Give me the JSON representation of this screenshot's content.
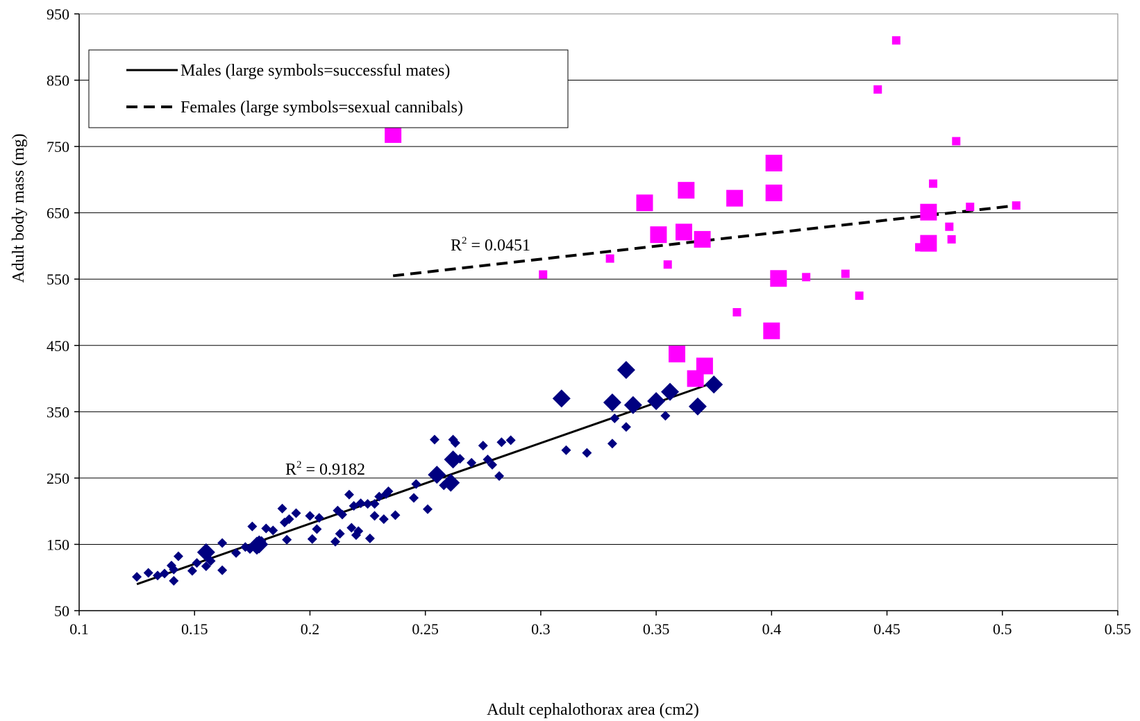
{
  "chart_data": {
    "type": "scatter",
    "xlabel": "Adult cephalothorax area (cm2)",
    "ylabel": "Adult body mass (mg)",
    "xlim": [
      0.1,
      0.55
    ],
    "ylim": [
      50,
      950
    ],
    "x_ticks": [
      "0.1",
      "0.15",
      "0.2",
      "0.25",
      "0.3",
      "0.35",
      "0.4",
      "0.45",
      "0.5",
      "0.55"
    ],
    "y_ticks": [
      "50",
      "150",
      "250",
      "350",
      "450",
      "550",
      "650",
      "750",
      "850",
      "950"
    ],
    "grid": "horizontal",
    "legend_position": "top-left",
    "legend": [
      {
        "label": "Males (large symbols=successful mates)",
        "line_style": "solid"
      },
      {
        "label": "Females (large symbols=sexual cannibals)",
        "line_style": "dashed"
      }
    ],
    "series": [
      {
        "name": "Males (large symbols=successful mates)",
        "color": "#000080",
        "marker": "diamond",
        "small_points": [
          [
            0.125,
            101
          ],
          [
            0.13,
            107
          ],
          [
            0.134,
            103
          ],
          [
            0.137,
            106
          ],
          [
            0.14,
            118
          ],
          [
            0.141,
            112
          ],
          [
            0.141,
            95
          ],
          [
            0.143,
            132
          ],
          [
            0.149,
            110
          ],
          [
            0.151,
            122
          ],
          [
            0.155,
            117
          ],
          [
            0.157,
            125
          ],
          [
            0.162,
            111
          ],
          [
            0.162,
            152
          ],
          [
            0.168,
            137
          ],
          [
            0.172,
            146
          ],
          [
            0.174,
            143
          ],
          [
            0.175,
            177
          ],
          [
            0.179,
            155
          ],
          [
            0.181,
            174
          ],
          [
            0.184,
            171
          ],
          [
            0.188,
            204
          ],
          [
            0.189,
            183
          ],
          [
            0.19,
            157
          ],
          [
            0.191,
            188
          ],
          [
            0.194,
            197
          ],
          [
            0.2,
            193
          ],
          [
            0.201,
            158
          ],
          [
            0.203,
            173
          ],
          [
            0.204,
            190
          ],
          [
            0.211,
            154
          ],
          [
            0.212,
            201
          ],
          [
            0.213,
            166
          ],
          [
            0.214,
            195
          ],
          [
            0.217,
            225
          ],
          [
            0.218,
            175
          ],
          [
            0.219,
            208
          ],
          [
            0.22,
            164
          ],
          [
            0.221,
            170
          ],
          [
            0.222,
            212
          ],
          [
            0.225,
            211
          ],
          [
            0.226,
            159
          ],
          [
            0.228,
            193
          ],
          [
            0.228,
            211
          ],
          [
            0.23,
            222
          ],
          [
            0.232,
            188
          ],
          [
            0.233,
            226
          ],
          [
            0.234,
            230
          ],
          [
            0.237,
            194
          ],
          [
            0.245,
            220
          ],
          [
            0.246,
            241
          ],
          [
            0.251,
            203
          ],
          [
            0.254,
            308
          ],
          [
            0.258,
            239
          ],
          [
            0.262,
            308
          ],
          [
            0.263,
            303
          ],
          [
            0.265,
            279
          ],
          [
            0.27,
            273
          ],
          [
            0.275,
            299
          ],
          [
            0.277,
            278
          ],
          [
            0.279,
            270
          ],
          [
            0.282,
            253
          ],
          [
            0.283,
            304
          ],
          [
            0.287,
            307
          ],
          [
            0.311,
            292
          ],
          [
            0.32,
            288
          ],
          [
            0.331,
            302
          ],
          [
            0.332,
            340
          ],
          [
            0.337,
            327
          ],
          [
            0.354,
            344
          ]
        ],
        "large_points": [
          [
            0.155,
            138
          ],
          [
            0.177,
            148
          ],
          [
            0.178,
            150
          ],
          [
            0.255,
            255
          ],
          [
            0.261,
            243
          ],
          [
            0.262,
            278
          ],
          [
            0.309,
            370
          ],
          [
            0.331,
            364
          ],
          [
            0.337,
            413
          ],
          [
            0.34,
            360
          ],
          [
            0.35,
            366
          ],
          [
            0.356,
            380
          ],
          [
            0.368,
            358
          ],
          [
            0.375,
            391
          ]
        ],
        "trendline": {
          "x": [
            0.125,
            0.375
          ],
          "y": [
            90,
            394
          ],
          "style": "solid"
        },
        "r_squared": "0.9182"
      },
      {
        "name": "Females (large symbols=sexual cannibals)",
        "color": "#ff00ff",
        "marker": "square",
        "small_points": [
          [
            0.301,
            557
          ],
          [
            0.33,
            581
          ],
          [
            0.355,
            572
          ],
          [
            0.385,
            500
          ],
          [
            0.415,
            553
          ],
          [
            0.432,
            558
          ],
          [
            0.438,
            525
          ],
          [
            0.446,
            836
          ],
          [
            0.454,
            910
          ],
          [
            0.464,
            598
          ],
          [
            0.47,
            694
          ],
          [
            0.477,
            629
          ],
          [
            0.478,
            610
          ],
          [
            0.48,
            758
          ],
          [
            0.486,
            659
          ],
          [
            0.506,
            661
          ]
        ],
        "large_points": [
          [
            0.236,
            768
          ],
          [
            0.345,
            665
          ],
          [
            0.351,
            617
          ],
          [
            0.359,
            437
          ],
          [
            0.362,
            621
          ],
          [
            0.363,
            684
          ],
          [
            0.367,
            400
          ],
          [
            0.37,
            610
          ],
          [
            0.371,
            419
          ],
          [
            0.384,
            672
          ],
          [
            0.4,
            472
          ],
          [
            0.401,
            680
          ],
          [
            0.401,
            725
          ],
          [
            0.403,
            551
          ],
          [
            0.468,
            604
          ],
          [
            0.468,
            651
          ]
        ],
        "trendline": {
          "x": [
            0.236,
            0.506
          ],
          "y": [
            555,
            661
          ],
          "style": "dashed"
        },
        "r_squared": "0.0451"
      }
    ],
    "annotations": [
      {
        "id": "female",
        "prefix": "R",
        "superscript": "2",
        "suffix": " = 0.0451"
      },
      {
        "id": "male",
        "prefix": "R",
        "superscript": "2",
        "suffix": " = 0.9182"
      }
    ]
  }
}
